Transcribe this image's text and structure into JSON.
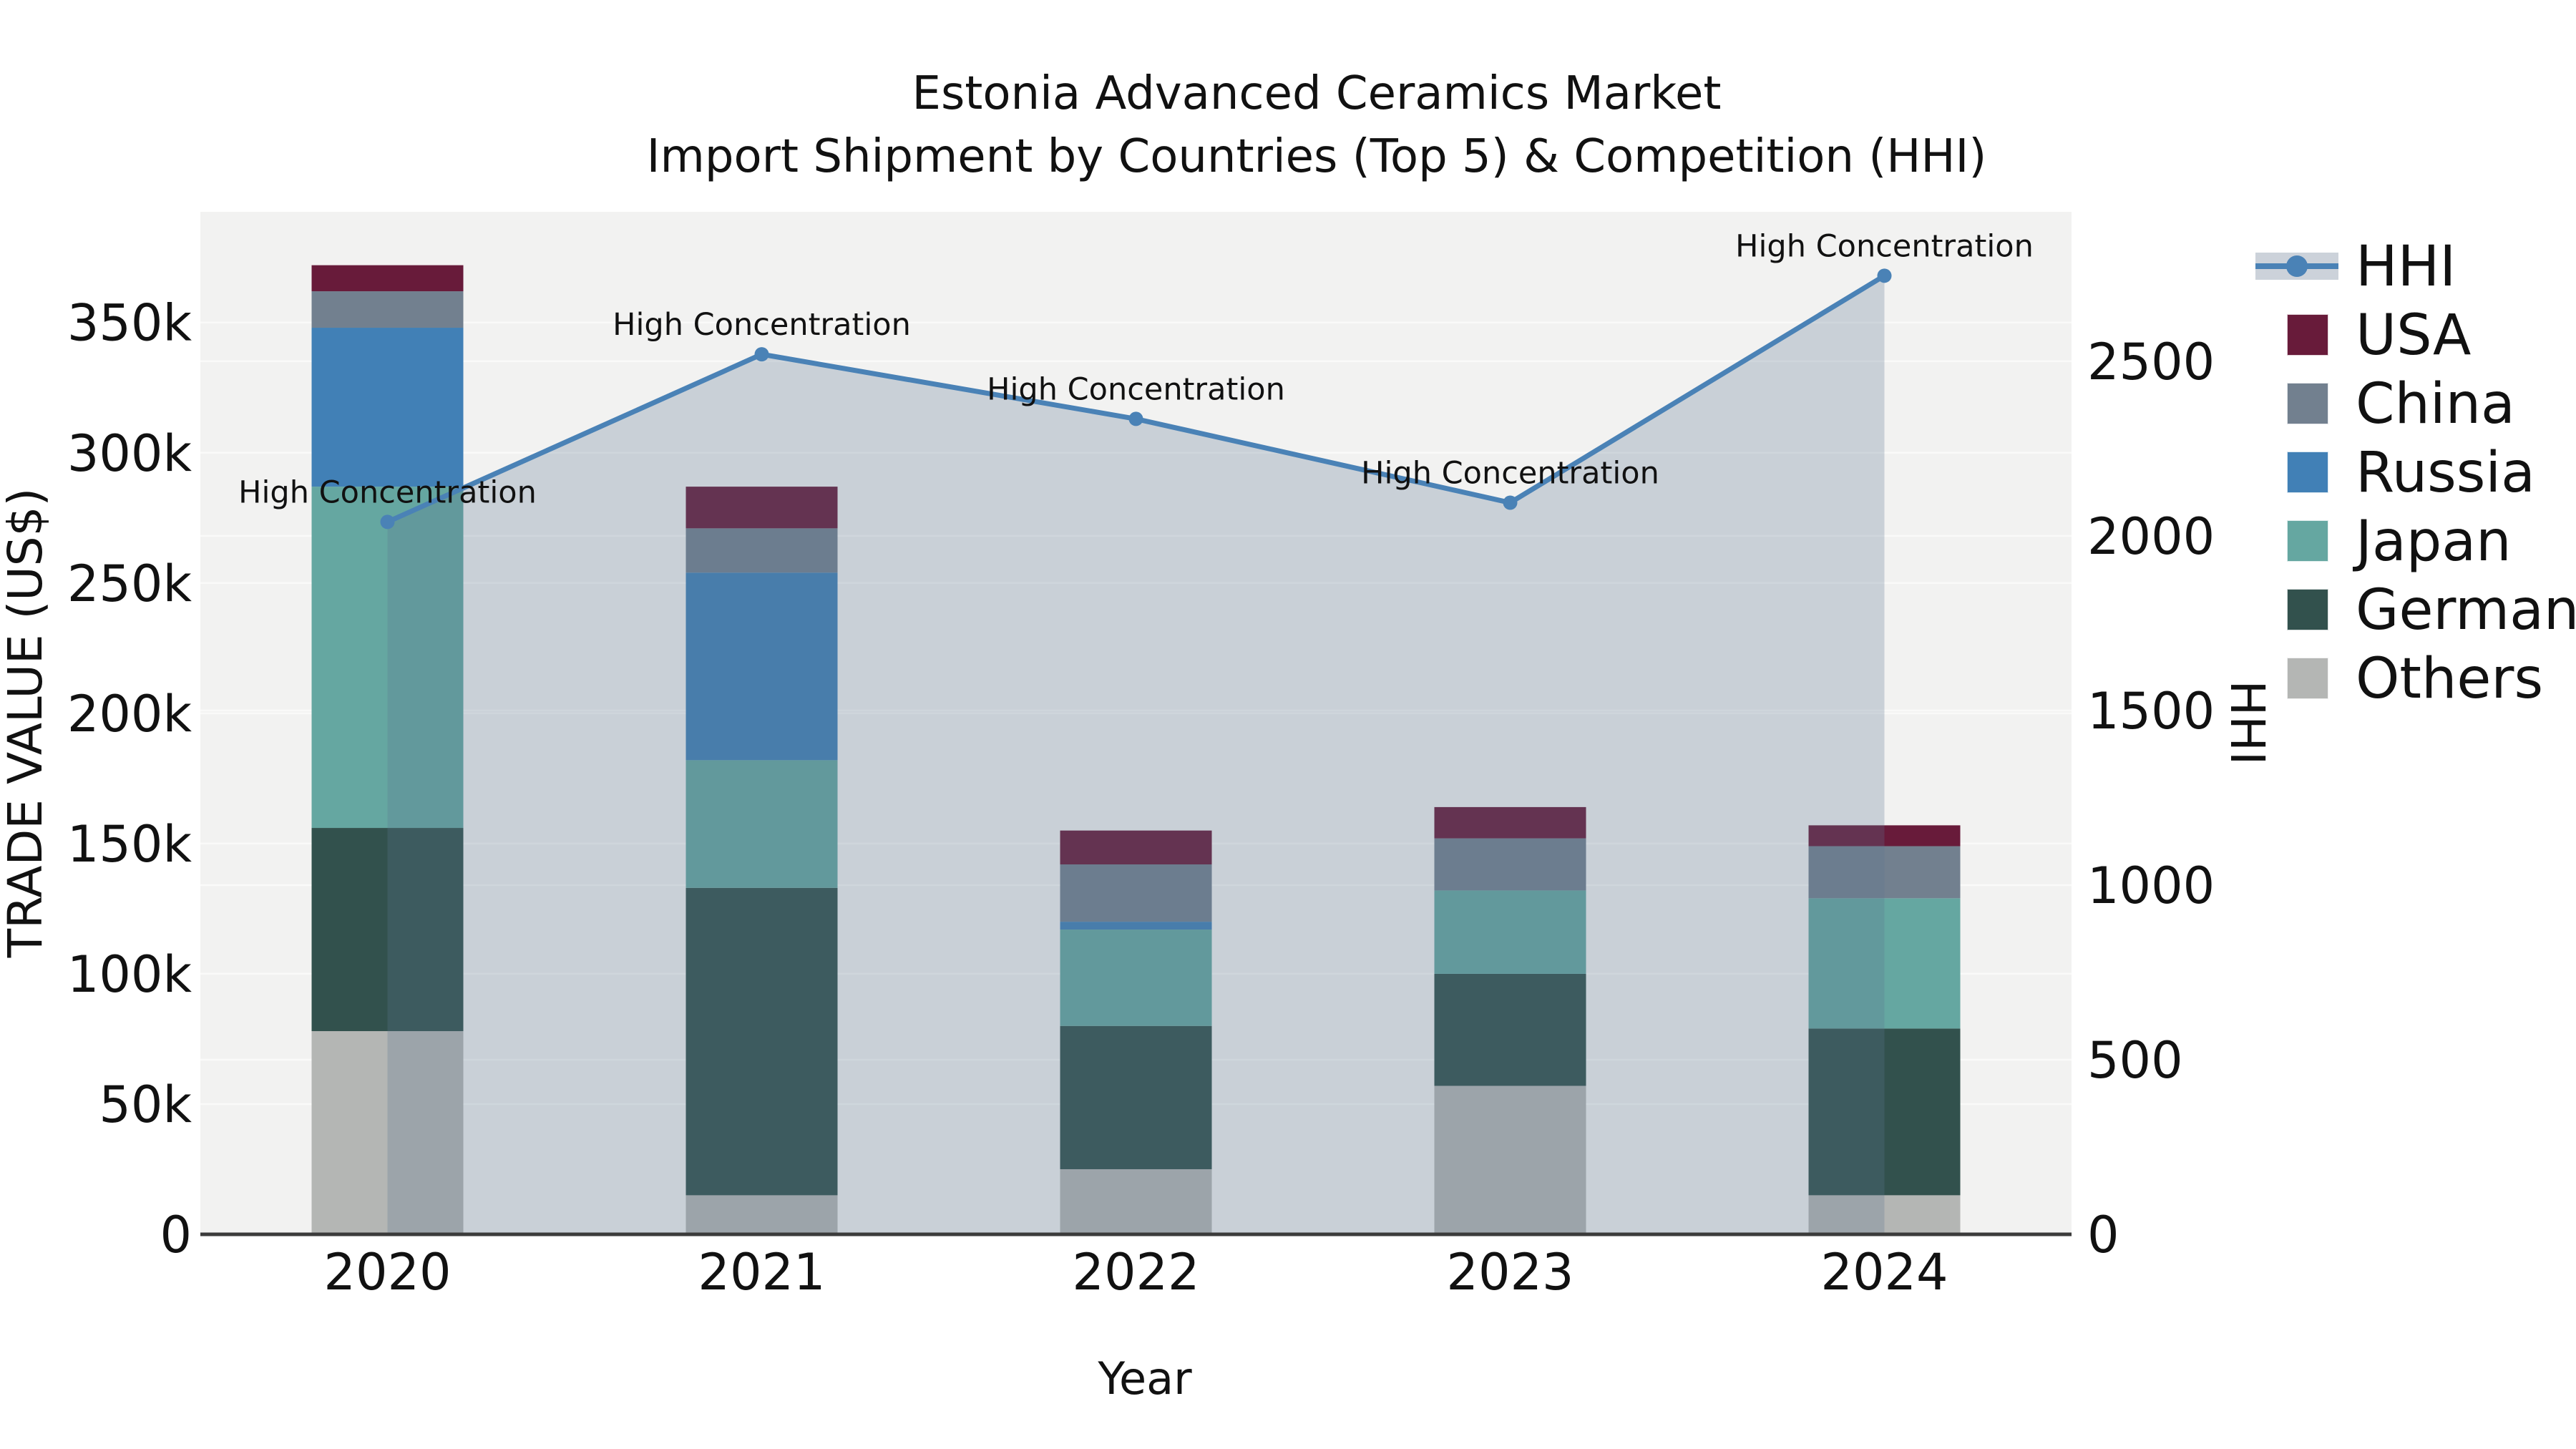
{
  "title": {
    "line1": "Estonia Advanced Ceramics Market",
    "line2": "Import Shipment by Countries (Top 5) & Competition (HHI)"
  },
  "axes": {
    "x_label": "Year",
    "y_left_label": "TRADE VALUE (US$)",
    "y_right_label": "HHI",
    "x_tick_labels": [
      "2020",
      "2021",
      "2022",
      "2023",
      "2024"
    ],
    "y_left_tick_labels": [
      "0",
      "50k",
      "100k",
      "150k",
      "200k",
      "250k",
      "300k",
      "350k"
    ],
    "y_left_tick_values": [
      0,
      50000,
      100000,
      150000,
      200000,
      250000,
      300000,
      350000
    ],
    "y_right_tick_labels": [
      "0",
      "500",
      "1000",
      "1500",
      "2000",
      "2500"
    ],
    "y_right_tick_values": [
      0,
      500,
      1000,
      1500,
      2000,
      2500
    ]
  },
  "legend": {
    "items": [
      {
        "label": "HHI",
        "type": "line",
        "color_key": "hhi_line"
      },
      {
        "label": "USA",
        "type": "patch",
        "color_key": "usa"
      },
      {
        "label": "China",
        "type": "patch",
        "color_key": "china"
      },
      {
        "label": "Russia",
        "type": "patch",
        "color_key": "russia"
      },
      {
        "label": "Japan",
        "type": "patch",
        "color_key": "japan"
      },
      {
        "label": "Germany",
        "type": "patch",
        "color_key": "germany"
      },
      {
        "label": "Others",
        "type": "patch",
        "color_key": "others"
      }
    ]
  },
  "colors": {
    "usa": "#681b3a",
    "china": "#72808f",
    "russia": "#4180b6",
    "japan": "#65a7a1",
    "germany": "#32514d",
    "others": "#b4b6b4",
    "hhi_line": "#4a82b6",
    "hhi_fill": "rgba(94,118,145,0.27)",
    "hhi_legend_band": "#ccd2da",
    "plot_bg": "#f2f2f1",
    "gridline": "#fafaf9",
    "spine": "#3b3b3b",
    "text": "#111111"
  },
  "chart_data": {
    "type": "bar+line",
    "categories": [
      "2020",
      "2021",
      "2022",
      "2023",
      "2024"
    ],
    "stack_order_bottom_to_top": [
      "Others",
      "Germany",
      "Japan",
      "Russia",
      "China",
      "USA"
    ],
    "series": [
      {
        "name": "Others",
        "values": [
          78000,
          15000,
          25000,
          57000,
          15000
        ]
      },
      {
        "name": "Germany",
        "values": [
          78000,
          118000,
          55000,
          43000,
          64000
        ]
      },
      {
        "name": "Japan",
        "values": [
          131000,
          49000,
          37000,
          32000,
          50000
        ]
      },
      {
        "name": "Russia",
        "values": [
          61000,
          72000,
          3000,
          0,
          0
        ]
      },
      {
        "name": "China",
        "values": [
          14000,
          17000,
          22000,
          20000,
          20000
        ]
      },
      {
        "name": "USA",
        "values": [
          10000,
          16000,
          13000,
          12000,
          8000
        ]
      }
    ],
    "bar_totals": [
      372000,
      287000,
      155000,
      164000,
      157000
    ],
    "line_series": {
      "name": "HHI",
      "axis": "right",
      "values": [
        2040,
        2520,
        2335,
        2095,
        2745
      ]
    },
    "point_annotations": [
      "High Concentration",
      "High Concentration",
      "High Concentration",
      "High Concentration",
      "High Concentration"
    ],
    "xlabel": "Year",
    "ylabel_left": "TRADE VALUE (US$)",
    "ylabel_right": "HHI",
    "ylim_left": [
      0,
      392500
    ],
    "ylim_right": [
      0,
      2928
    ],
    "grid": true,
    "area_fill_under_line": true,
    "legend_position": "right-outside"
  }
}
